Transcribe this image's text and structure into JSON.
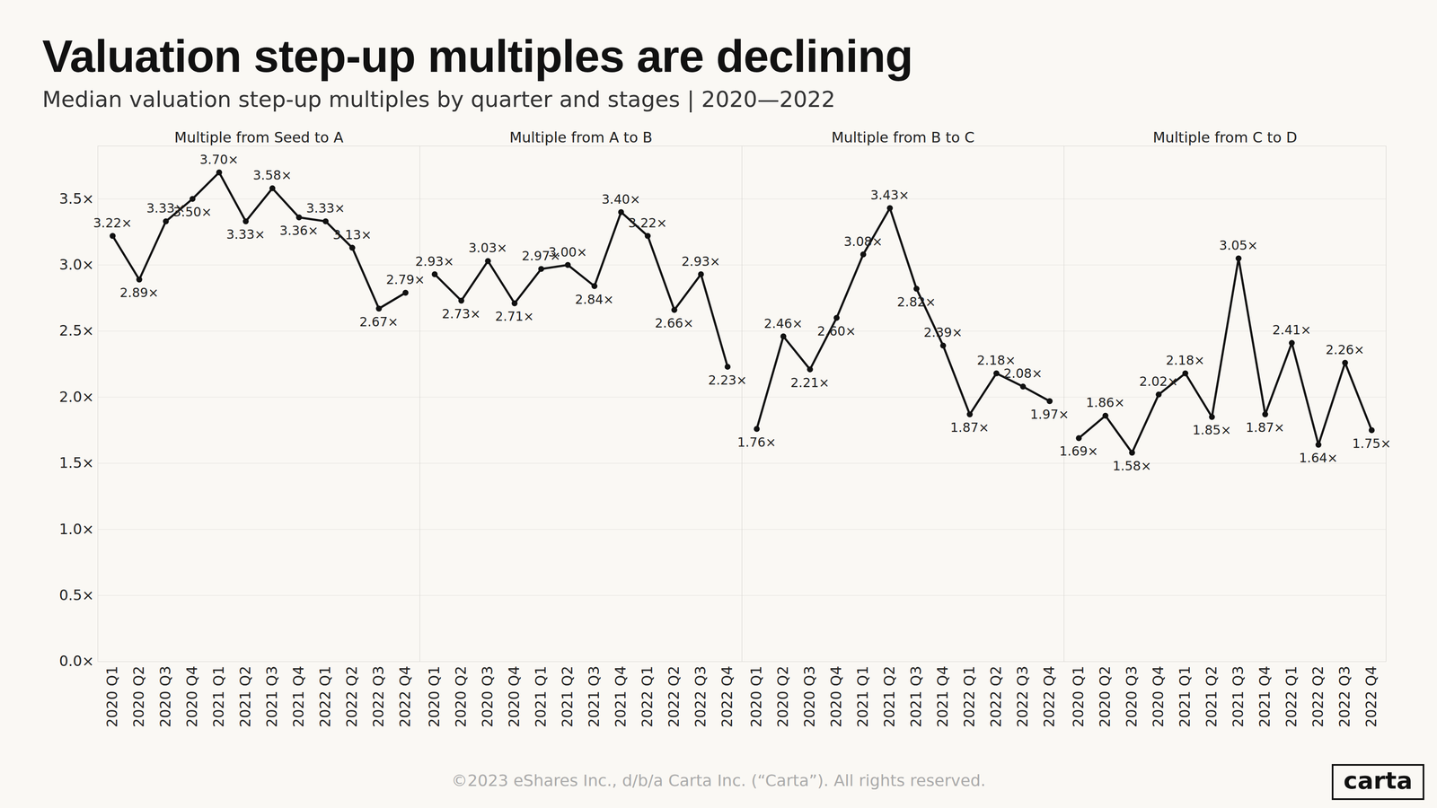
{
  "title": "Valuation step-up multiples are declining",
  "subtitle": "Median valuation step-up multiples by quarter and stages | 2020—2022",
  "footer": "©2023 eShares Inc., d/b/a Carta Inc. (“Carta”). All rights reserved.",
  "logo": "carta",
  "chart_data": [
    {
      "type": "line",
      "title": "Multiple from Seed to A",
      "categories": [
        "2020 Q1",
        "2020 Q2",
        "2020 Q3",
        "2020 Q4",
        "2021 Q1",
        "2021 Q2",
        "2021 Q3",
        "2021 Q4",
        "2022 Q1",
        "2022 Q2",
        "2022 Q3",
        "2022 Q4"
      ],
      "values": [
        3.22,
        2.89,
        3.33,
        3.5,
        3.7,
        3.33,
        3.58,
        3.36,
        3.33,
        3.13,
        2.67,
        2.79
      ],
      "value_labels": [
        "3.22×",
        "2.89×",
        "3.33×",
        "3.50×",
        "3.70×",
        "3.33×",
        "3.58×",
        "3.36×",
        "3.33×",
        "3.13×",
        "2.67×",
        "2.79×"
      ],
      "color": "#111111",
      "marker": "circle",
      "data_labels": true,
      "grid": true,
      "ylim": [
        0,
        3.9
      ],
      "yticks": [
        {
          "value": 0,
          "label": "0.0×"
        },
        {
          "value": 0.5,
          "label": "0.5×"
        },
        {
          "value": 1,
          "label": "1.0×"
        },
        {
          "value": 1.5,
          "label": "1.5×"
        },
        {
          "value": 2,
          "label": "2.0×"
        },
        {
          "value": 2.5,
          "label": "2.5×"
        },
        {
          "value": 3,
          "label": "3.0×"
        },
        {
          "value": 3.5,
          "label": "3.5×"
        }
      ]
    },
    {
      "type": "line",
      "title": "Multiple from A to B",
      "categories": [
        "2020 Q1",
        "2020 Q2",
        "2020 Q3",
        "2020 Q4",
        "2021 Q1",
        "2021 Q2",
        "2021 Q3",
        "2021 Q4",
        "2022 Q1",
        "2022 Q2",
        "2022 Q3",
        "2022 Q4"
      ],
      "values": [
        2.93,
        2.73,
        3.03,
        2.71,
        2.97,
        3.0,
        2.84,
        3.4,
        3.22,
        2.66,
        2.93,
        2.23
      ],
      "value_labels": [
        "2.93×",
        "2.73×",
        "3.03×",
        "2.71×",
        "2.97×",
        "3.00×",
        "2.84×",
        "3.40×",
        "3.22×",
        "2.66×",
        "2.93×",
        "2.23×"
      ],
      "color": "#111111",
      "marker": "circle",
      "data_labels": true,
      "grid": true,
      "ylim": [
        0,
        3.9
      ],
      "yticks": [
        {
          "value": 0,
          "label": "0.0×"
        },
        {
          "value": 0.5,
          "label": "0.5×"
        },
        {
          "value": 1,
          "label": "1.0×"
        },
        {
          "value": 1.5,
          "label": "1.5×"
        },
        {
          "value": 2,
          "label": "2.0×"
        },
        {
          "value": 2.5,
          "label": "2.5×"
        },
        {
          "value": 3,
          "label": "3.0×"
        },
        {
          "value": 3.5,
          "label": "3.5×"
        }
      ]
    },
    {
      "type": "line",
      "title": "Multiple from B to C",
      "categories": [
        "2020 Q1",
        "2020 Q2",
        "2020 Q3",
        "2020 Q4",
        "2021 Q1",
        "2021 Q2",
        "2021 Q3",
        "2021 Q4",
        "2022 Q1",
        "2022 Q2",
        "2022 Q3",
        "2022 Q4"
      ],
      "values": [
        1.76,
        2.46,
        2.21,
        2.6,
        3.08,
        3.43,
        2.82,
        2.39,
        1.87,
        2.18,
        2.08,
        1.97
      ],
      "value_labels": [
        "1.76×",
        "2.46×",
        "2.21×",
        "2.60×",
        "3.08×",
        "3.43×",
        "2.82×",
        "2.39×",
        "1.87×",
        "2.18×",
        "2.08×",
        "1.97×"
      ],
      "color": "#111111",
      "marker": "circle",
      "data_labels": true,
      "grid": true,
      "ylim": [
        0,
        3.9
      ],
      "yticks": [
        {
          "value": 0,
          "label": "0.0×"
        },
        {
          "value": 0.5,
          "label": "0.5×"
        },
        {
          "value": 1,
          "label": "1.0×"
        },
        {
          "value": 1.5,
          "label": "1.5×"
        },
        {
          "value": 2,
          "label": "2.0×"
        },
        {
          "value": 2.5,
          "label": "2.5×"
        },
        {
          "value": 3,
          "label": "3.0×"
        },
        {
          "value": 3.5,
          "label": "3.5×"
        }
      ]
    },
    {
      "type": "line",
      "title": "Multiple from C to D",
      "categories": [
        "2020 Q1",
        "2020 Q2",
        "2020 Q3",
        "2020 Q4",
        "2021 Q1",
        "2021 Q2",
        "2021 Q3",
        "2021 Q4",
        "2022 Q1",
        "2022 Q2",
        "2022 Q3",
        "2022 Q4"
      ],
      "values": [
        1.69,
        1.86,
        1.58,
        2.02,
        2.18,
        1.85,
        3.05,
        1.87,
        2.41,
        1.64,
        2.26,
        1.75
      ],
      "value_labels": [
        "1.69×",
        "1.86×",
        "1.58×",
        "2.02×",
        "2.18×",
        "1.85×",
        "3.05×",
        "1.87×",
        "2.41×",
        "1.64×",
        "2.26×",
        "1.75×"
      ],
      "color": "#111111",
      "marker": "circle",
      "data_labels": true,
      "grid": true,
      "ylim": [
        0,
        3.9
      ],
      "yticks": [
        {
          "value": 0,
          "label": "0.0×"
        },
        {
          "value": 0.5,
          "label": "0.5×"
        },
        {
          "value": 1,
          "label": "1.0×"
        },
        {
          "value": 1.5,
          "label": "1.5×"
        },
        {
          "value": 2,
          "label": "2.0×"
        },
        {
          "value": 2.5,
          "label": "2.5×"
        },
        {
          "value": 3,
          "label": "3.0×"
        },
        {
          "value": 3.5,
          "label": "3.5×"
        }
      ]
    }
  ]
}
